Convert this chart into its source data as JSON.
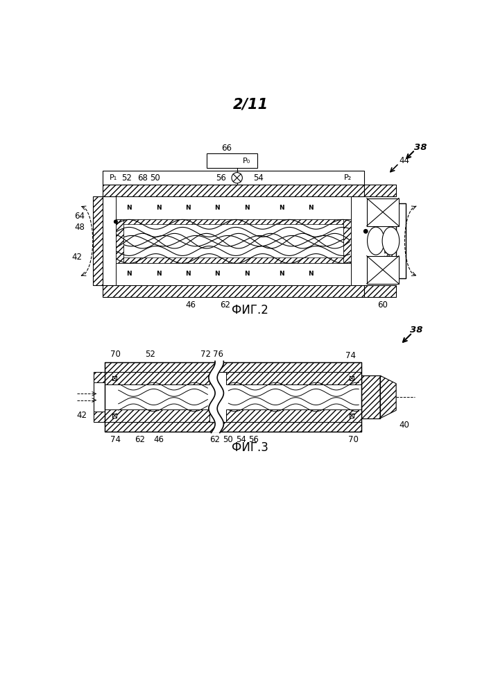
{
  "title": "2/11",
  "fig2_caption": "ФИГ.2",
  "fig3_caption": "ФИГ.3",
  "bg_color": "#ffffff",
  "line_color": "#000000",
  "label_fontsize": 8.5,
  "title_fontsize": 15,
  "caption_fontsize": 12
}
